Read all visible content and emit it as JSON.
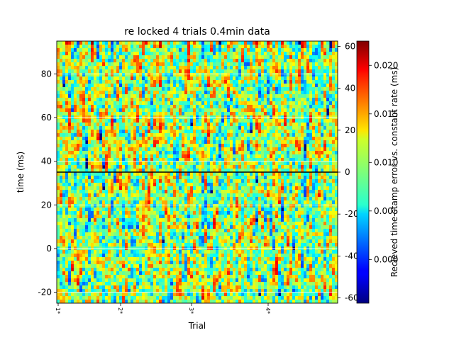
{
  "chart_data": {
    "type": "heatmap",
    "title": "re locked 4 trials  0.4min data",
    "xlabel": "Trial",
    "ylabel": "time (ms)",
    "x_ticks": [
      "1*",
      "2*",
      "3*",
      "4*"
    ],
    "ylim": [
      -25,
      95
    ],
    "y_ticks": [
      -20,
      0,
      20,
      40,
      60,
      80
    ],
    "y_ticks_right": [
      -60,
      -40,
      -20,
      0,
      20,
      40,
      60
    ],
    "ylim_right": [
      -62.5,
      62.5
    ],
    "horizontal_line_y": 35,
    "colormap": "jet",
    "colorbar": {
      "label": "Recieved time-stamp error vs. constant rate (ms)",
      "range": [
        -0.0045,
        0.0225
      ],
      "ticks": [
        "0.000",
        "0.005",
        "0.010",
        "0.015",
        "0.020"
      ],
      "tick_values": [
        0,
        0.005,
        0.01,
        0.015,
        0.02
      ]
    },
    "grid": true
  }
}
